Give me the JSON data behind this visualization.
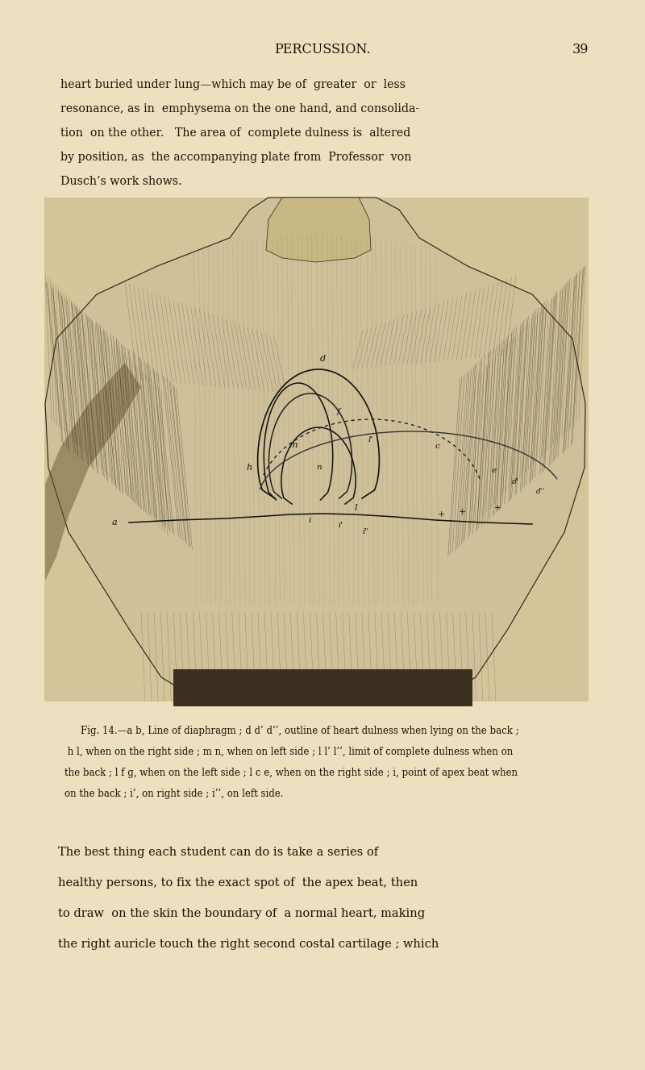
{
  "bg_color": "#ede0be",
  "page_width": 8.0,
  "page_height": 13.27,
  "dpi": 100,
  "header_text": "PERCUSSION.",
  "header_page_num": "39",
  "top_text_lines": [
    "heart buried under lung—which may be of  greater  or  less",
    "resonance, as in  emphysema on the one hand, and consolida-",
    "tion  on the other.   The area of  complete dulness is  altered",
    "by position, as  the accompanying plate from  Professor  von",
    "Dusch’s work shows."
  ],
  "fig_caption_line1": "Fig. 14.—a b, Line of diaphragm ; d d’ d’’, outline of heart dulness when lying on the back ;",
  "fig_caption_line2": " h l, when on the right side ; m n, when on left side ; l l’ l’’, limit of complete dulness when on",
  "fig_caption_line3": "the back ; l f g, when on the left side ; l c e, when on the right side ; i, point of apex beat when",
  "fig_caption_line4": "on the back ; i’, on right side ; i’’, on left side.",
  "bottom_text_lines": [
    "The best thing each student can do is take a series of",
    "healthy persons, to fix the exact spot of  the apex beat, then",
    "to draw  on the skin the boundary of  a normal heart, making",
    "the right auricle touch the right second costal cartilage ; which"
  ],
  "text_color": "#1a1208",
  "skin_color": "#c8b888",
  "skin_dark": "#7a6840",
  "skin_mid": "#a89060"
}
